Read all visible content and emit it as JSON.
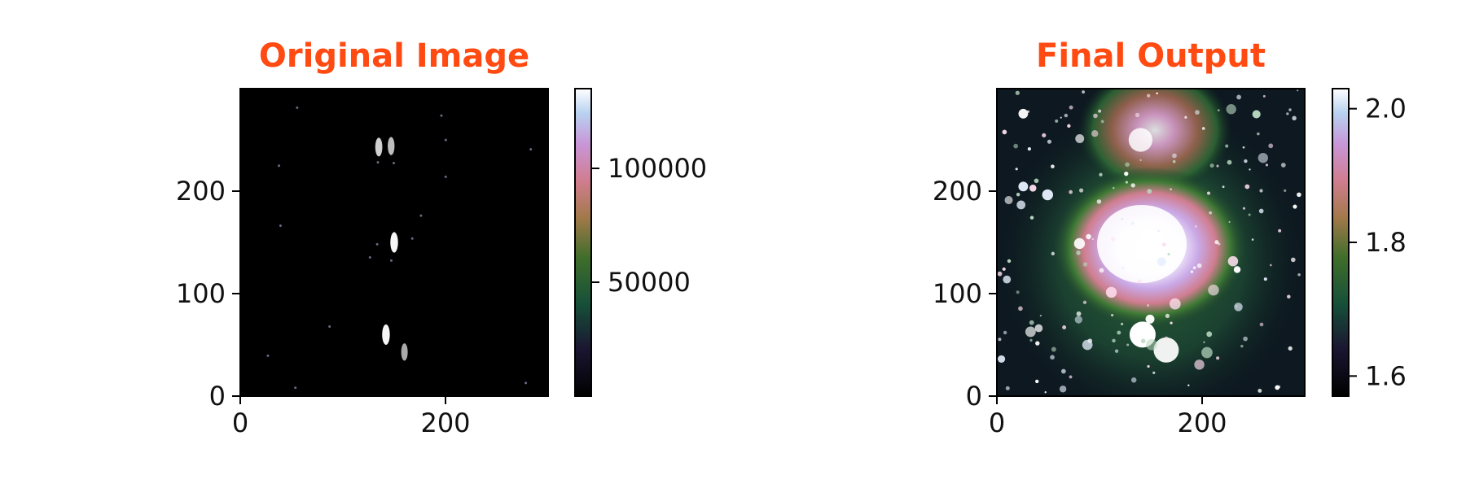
{
  "colors": {
    "title": "#ff4a12",
    "axis": "#000000",
    "background": "#ffffff",
    "colormap": "cubehelix"
  },
  "chart_data": [
    {
      "type": "heatmap",
      "title": "Original Image",
      "xlabel": "",
      "ylabel": "",
      "xlim": [
        0,
        300
      ],
      "ylim": [
        0,
        300
      ],
      "x_ticks": [
        "0",
        "200"
      ],
      "y_ticks": [
        "0",
        "100",
        "200"
      ],
      "colorbar": {
        "range": [
          0,
          135000
        ],
        "ticks": [
          "50000",
          "100000"
        ],
        "tick_values": [
          50000,
          100000
        ]
      },
      "features": [
        {
          "x": 150,
          "y": 150,
          "value": 130000
        },
        {
          "x": 142,
          "y": 60,
          "value": 130000
        },
        {
          "x": 135,
          "y": 243,
          "value": 110000
        },
        {
          "x": 147,
          "y": 244,
          "value": 100000
        },
        {
          "x": 160,
          "y": 43,
          "value": 90000
        }
      ]
    },
    {
      "type": "heatmap",
      "title": "Final Output",
      "xlabel": "",
      "ylabel": "",
      "xlim": [
        0,
        300
      ],
      "ylim": [
        0,
        300
      ],
      "x_ticks": [
        "0",
        "200"
      ],
      "y_ticks": [
        "0",
        "100",
        "200"
      ],
      "colorbar": {
        "range": [
          1.57,
          2.03
        ],
        "ticks": [
          "1.6",
          "1.8",
          "2.0"
        ],
        "tick_values": [
          1.6,
          1.8,
          2.0
        ]
      },
      "features": [
        {
          "x": 150,
          "y": 150,
          "value": 2.03
        },
        {
          "x": 140,
          "y": 250,
          "value": 1.95
        },
        {
          "x": 142,
          "y": 60,
          "value": 2.03
        },
        {
          "x": 165,
          "y": 45,
          "value": 2.0
        }
      ]
    }
  ]
}
